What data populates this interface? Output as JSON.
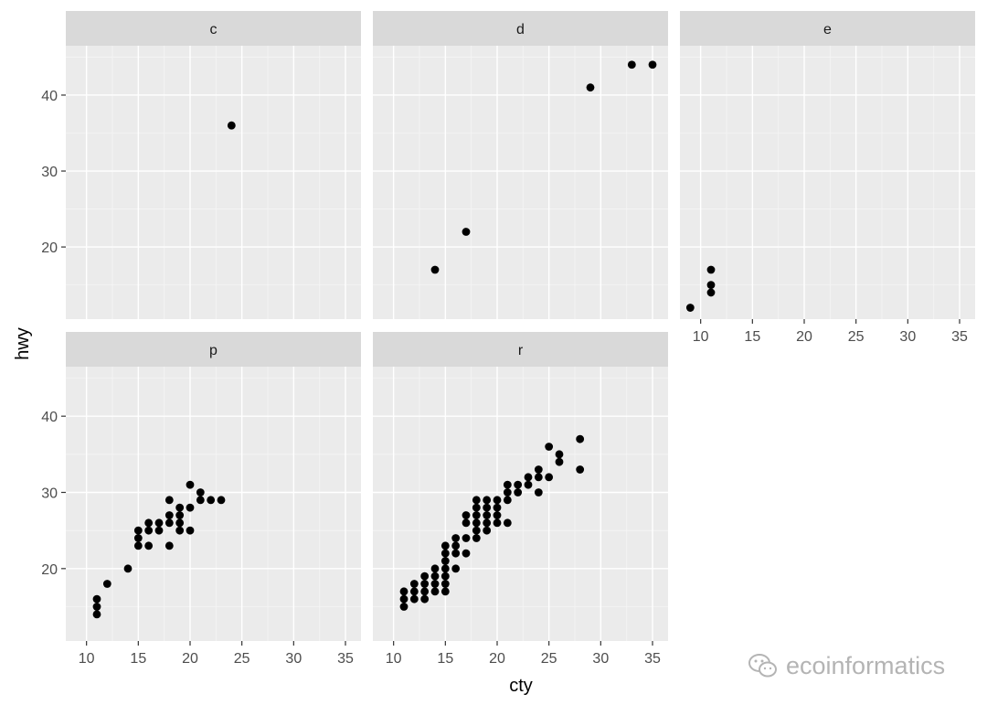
{
  "chart_data": {
    "type": "scatter",
    "facet_by": "fl",
    "xlabel": "cty",
    "ylabel": "hwy",
    "xlim": [
      8,
      36.5
    ],
    "ylim": [
      10.5,
      46.5
    ],
    "x_ticks": [
      10,
      15,
      20,
      25,
      30,
      35
    ],
    "y_ticks": [
      20,
      30,
      40
    ],
    "grid": true,
    "facets": [
      {
        "label": "c",
        "points": [
          [
            24,
            36
          ]
        ]
      },
      {
        "label": "d",
        "points": [
          [
            14,
            17
          ],
          [
            17,
            22
          ],
          [
            29,
            41
          ],
          [
            33,
            44
          ],
          [
            35,
            44
          ]
        ]
      },
      {
        "label": "e",
        "points": [
          [
            9,
            12
          ],
          [
            11,
            14
          ],
          [
            11,
            15
          ],
          [
            11,
            17
          ]
        ]
      },
      {
        "label": "p",
        "points": [
          [
            11,
            14
          ],
          [
            11,
            15
          ],
          [
            11,
            16
          ],
          [
            12,
            18
          ],
          [
            14,
            20
          ],
          [
            15,
            23
          ],
          [
            15,
            24
          ],
          [
            15,
            25
          ],
          [
            16,
            23
          ],
          [
            16,
            25
          ],
          [
            16,
            26
          ],
          [
            17,
            25
          ],
          [
            17,
            26
          ],
          [
            18,
            23
          ],
          [
            18,
            26
          ],
          [
            18,
            27
          ],
          [
            18,
            29
          ],
          [
            19,
            25
          ],
          [
            19,
            26
          ],
          [
            19,
            27
          ],
          [
            19,
            28
          ],
          [
            20,
            25
          ],
          [
            20,
            28
          ],
          [
            20,
            31
          ],
          [
            21,
            29
          ],
          [
            21,
            30
          ],
          [
            22,
            29
          ],
          [
            23,
            29
          ]
        ]
      },
      {
        "label": "r",
        "points": [
          [
            11,
            15
          ],
          [
            11,
            16
          ],
          [
            11,
            17
          ],
          [
            12,
            16
          ],
          [
            12,
            17
          ],
          [
            12,
            18
          ],
          [
            13,
            16
          ],
          [
            13,
            17
          ],
          [
            13,
            18
          ],
          [
            13,
            19
          ],
          [
            14,
            17
          ],
          [
            14,
            18
          ],
          [
            14,
            19
          ],
          [
            14,
            20
          ],
          [
            15,
            17
          ],
          [
            15,
            18
          ],
          [
            15,
            19
          ],
          [
            15,
            20
          ],
          [
            15,
            21
          ],
          [
            15,
            22
          ],
          [
            15,
            23
          ],
          [
            16,
            20
          ],
          [
            16,
            22
          ],
          [
            16,
            23
          ],
          [
            16,
            24
          ],
          [
            17,
            22
          ],
          [
            17,
            24
          ],
          [
            17,
            26
          ],
          [
            17,
            27
          ],
          [
            18,
            24
          ],
          [
            18,
            25
          ],
          [
            18,
            26
          ],
          [
            18,
            27
          ],
          [
            18,
            28
          ],
          [
            18,
            29
          ],
          [
            19,
            25
          ],
          [
            19,
            26
          ],
          [
            19,
            27
          ],
          [
            19,
            28
          ],
          [
            19,
            29
          ],
          [
            20,
            26
          ],
          [
            20,
            27
          ],
          [
            20,
            28
          ],
          [
            20,
            29
          ],
          [
            21,
            26
          ],
          [
            21,
            29
          ],
          [
            21,
            30
          ],
          [
            21,
            31
          ],
          [
            22,
            30
          ],
          [
            22,
            31
          ],
          [
            23,
            31
          ],
          [
            23,
            32
          ],
          [
            24,
            30
          ],
          [
            24,
            32
          ],
          [
            24,
            33
          ],
          [
            25,
            32
          ],
          [
            25,
            36
          ],
          [
            26,
            34
          ],
          [
            26,
            35
          ],
          [
            28,
            33
          ],
          [
            28,
            37
          ]
        ]
      }
    ]
  },
  "watermark": {
    "text": "ecoinformatics",
    "icon": "wechat-icon"
  }
}
